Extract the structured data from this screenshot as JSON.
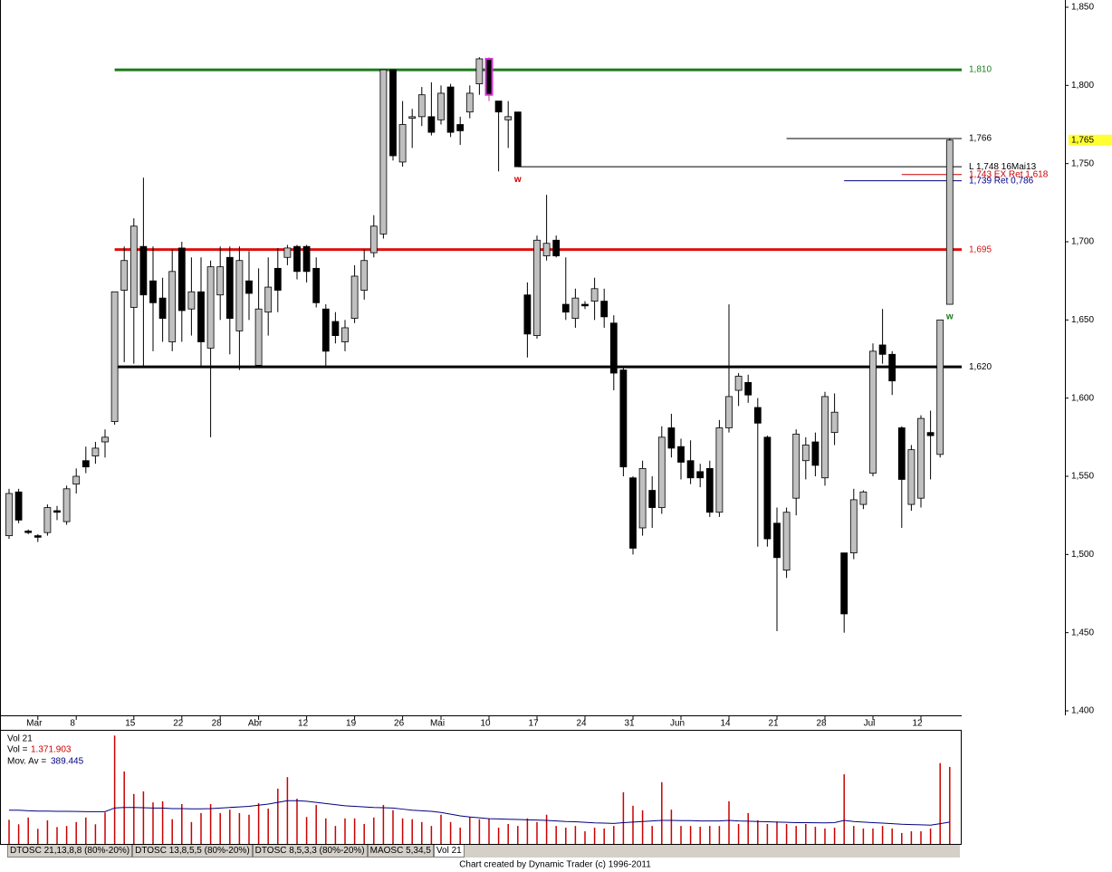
{
  "chart_data": [
    {
      "type": "candlestick",
      "categories": [
        null,
        null,
        null,
        "Mar",
        null,
        null,
        null,
        "8",
        null,
        null,
        null,
        null,
        null,
        "15",
        null,
        null,
        null,
        null,
        "22",
        null,
        null,
        null,
        "28",
        null,
        null,
        null,
        "Abr",
        null,
        null,
        null,
        null,
        "12",
        null,
        null,
        null,
        null,
        "19",
        null,
        null,
        null,
        null,
        "26",
        null,
        null,
        null,
        "Mai",
        null,
        null,
        null,
        null,
        "10",
        null,
        null,
        null,
        null,
        "17",
        null,
        null,
        null,
        null,
        "24",
        null,
        null,
        null,
        null,
        "31",
        null,
        null,
        null,
        null,
        "Jun",
        null,
        null,
        null,
        null,
        "14",
        null,
        null,
        null,
        null,
        "21",
        null,
        null,
        null,
        null,
        "28",
        null,
        null,
        null,
        null,
        "Jul",
        null,
        null,
        null,
        null,
        "12",
        null,
        null,
        null
      ],
      "open": [
        1512,
        1540,
        1515,
        1512,
        1514,
        1528,
        1521,
        1545,
        1560,
        1563,
        1572,
        1585,
        1669,
        1658,
        1697,
        1675,
        1664,
        1636,
        1696,
        1657,
        1668,
        1632,
        1666,
        1690,
        1643,
        1675,
        1621,
        1655,
        1683,
        1690,
        1697,
        1697,
        1683,
        1657,
        1649,
        1636,
        1651,
        1669,
        1693,
        1705,
        1810,
        1751,
        1779,
        1780,
        1780,
        1778,
        1799,
        1775,
        1783,
        1801,
        1817,
        1790,
        1778,
        1783,
        1666,
        1640,
        1691,
        1701,
        1660,
        1651,
        1660,
        1662,
        1662,
        1648,
        1618,
        1549,
        1517,
        1541,
        1530,
        1581,
        1569,
        1560,
        1553,
        1555,
        1527,
        1581,
        1605,
        1610,
        1594,
        1575,
        1520,
        1490,
        1536,
        1560,
        1572,
        1549,
        1578,
        1501,
        1501,
        1532,
        1552,
        1634,
        1628,
        1581,
        1532,
        1536,
        1578,
        1564,
        1660
      ],
      "high": [
        1542,
        1542,
        1516,
        1513,
        1532,
        1531,
        1544,
        1555,
        1569,
        1572,
        1580,
        1668,
        1697,
        1715,
        1741,
        1697,
        1677,
        1695,
        1700,
        1690,
        1690,
        1688,
        1697,
        1697,
        1697,
        1694,
        1683,
        1690,
        1696,
        1698,
        1698,
        1698,
        1690,
        1660,
        1655,
        1650,
        1685,
        1695,
        1717,
        1810,
        1810,
        1790,
        1785,
        1799,
        1802,
        1800,
        1801,
        1780,
        1800,
        1818,
        1818,
        1790,
        1790,
        1783,
        1674,
        1704,
        1730,
        1704,
        1690,
        1670,
        1662,
        1677,
        1670,
        1653,
        1620,
        1550,
        1560,
        1550,
        1582,
        1590,
        1574,
        1573,
        1558,
        1560,
        1586,
        1660,
        1616,
        1615,
        1600,
        1576,
        1530,
        1530,
        1580,
        1575,
        1578,
        1604,
        1603,
        1501,
        1542,
        1541,
        1635,
        1657,
        1630,
        1582,
        1570,
        1589,
        1592,
        1650,
        1766
      ],
      "low": [
        1510,
        1520,
        1513,
        1508,
        1512,
        1522,
        1519,
        1539,
        1552,
        1558,
        1562,
        1583,
        1623,
        1622,
        1620,
        1630,
        1636,
        1630,
        1636,
        1640,
        1620,
        1575,
        1650,
        1628,
        1618,
        1650,
        1620,
        1640,
        1655,
        1685,
        1676,
        1674,
        1658,
        1620,
        1635,
        1630,
        1648,
        1663,
        1690,
        1702,
        1752,
        1748,
        1760,
        1774,
        1768,
        1775,
        1767,
        1762,
        1779,
        1794,
        1790,
        1745,
        1760,
        1748,
        1626,
        1638,
        1688,
        1690,
        1650,
        1645,
        1657,
        1650,
        1645,
        1605,
        1550,
        1500,
        1512,
        1517,
        1526,
        1562,
        1548,
        1545,
        1543,
        1524,
        1524,
        1578,
        1595,
        1597,
        1505,
        1505,
        1451,
        1485,
        1525,
        1548,
        1550,
        1544,
        1570,
        1450,
        1497,
        1529,
        1550,
        1622,
        1602,
        1517,
        1528,
        1530,
        1548,
        1562,
        1660
      ],
      "close": [
        1539,
        1522,
        1514,
        1511,
        1530,
        1527,
        1542,
        1550,
        1556,
        1568,
        1575,
        1668,
        1688,
        1710,
        1666,
        1661,
        1651,
        1681,
        1656,
        1668,
        1636,
        1684,
        1684,
        1651,
        1688,
        1667,
        1657,
        1671,
        1669,
        1696,
        1681,
        1681,
        1661,
        1630,
        1640,
        1645,
        1678,
        1688,
        1710,
        1810,
        1755,
        1775,
        1780,
        1794,
        1770,
        1795,
        1770,
        1771,
        1795,
        1817,
        1794,
        1783,
        1780,
        1748,
        1641,
        1701,
        1699,
        1691,
        1655,
        1664,
        1659,
        1670,
        1652,
        1616,
        1556,
        1504,
        1555,
        1530,
        1575,
        1568,
        1559,
        1549,
        1549,
        1527,
        1581,
        1601,
        1614,
        1602,
        1584,
        1510,
        1498,
        1527,
        1577,
        1570,
        1557,
        1601,
        1591,
        1462,
        1535,
        1540,
        1630,
        1628,
        1611,
        1548,
        1567,
        1587,
        1576,
        1650,
        1765
      ],
      "up_color": "#c0c0c0",
      "down_color": "#000000",
      "highlight": {
        "index": 50,
        "color": "#cc33cc"
      },
      "ylim": [
        1400,
        1850
      ],
      "yticks": [
        {
          "value": 1400,
          "label": "1,400"
        },
        {
          "value": 1450,
          "label": "1,450"
        },
        {
          "value": 1500,
          "label": "1,500"
        },
        {
          "value": 1550,
          "label": "1,550"
        },
        {
          "value": 1600,
          "label": "1,600"
        },
        {
          "value": 1650,
          "label": "1,650"
        },
        {
          "value": 1700,
          "label": "1,700"
        },
        {
          "value": 1750,
          "label": "1,750"
        },
        {
          "value": 1800,
          "label": "1,800"
        },
        {
          "value": 1850,
          "label": "1,850"
        }
      ],
      "lines": [
        {
          "value": 1810,
          "label": "1,810",
          "color": "#1a7a1a",
          "from": 11,
          "style": "thick"
        },
        {
          "value": 1695,
          "label": "1,695",
          "color": "#dd1111",
          "from": 11,
          "style": "thick"
        },
        {
          "value": 1620,
          "label": "1,620",
          "color": "#000000",
          "from": 11,
          "style": "thick"
        },
        {
          "value": 1766,
          "label": "1,766",
          "color": "#000000",
          "from": 81,
          "style": "thin"
        },
        {
          "value": 1748,
          "label": "L 1,748 16Mai13",
          "color": "#000000",
          "from": 53,
          "style": "thin"
        },
        {
          "value": 1743,
          "label": "1,743 EX Ret 1,618",
          "color": "#cc0000",
          "from": 93,
          "style": "thin"
        },
        {
          "value": 1739,
          "label": "1,739 Ret 0,786",
          "color": "#000080",
          "from": 87,
          "style": "thin"
        }
      ],
      "last_price": {
        "value": 1765,
        "label": "1,765",
        "color": "#ffff33"
      },
      "markers": [
        {
          "label": "w",
          "index": 53,
          "color": "#cc0000"
        },
        {
          "label": "w",
          "index": 98,
          "color": "#1a7a1a"
        }
      ]
    },
    {
      "type": "bar",
      "title": "Vol 21",
      "ylim": [
        0,
        2000000
      ],
      "series": [
        {
          "name": "Vol =",
          "color": "#cc0000",
          "value_label": "1.371.903",
          "values": [
            430000,
            350000,
            470000,
            270000,
            420000,
            300000,
            320000,
            390000,
            470000,
            350000,
            560000,
            1930000,
            1290000,
            890000,
            935000,
            740000,
            760000,
            440000,
            710000,
            390000,
            550000,
            710000,
            550000,
            610000,
            550000,
            520000,
            725000,
            630000,
            985000,
            1190000,
            805000,
            480000,
            695000,
            455000,
            320000,
            455000,
            455000,
            355000,
            470000,
            695000,
            600000,
            455000,
            440000,
            390000,
            320000,
            520000,
            390000,
            290000,
            480000,
            440000,
            455000,
            290000,
            355000,
            320000,
            455000,
            390000,
            520000,
            320000,
            290000,
            320000,
            225000,
            290000,
            275000,
            320000,
            920000,
            680000,
            600000,
            320000,
            1100000,
            610000,
            320000,
            320000,
            305000,
            320000,
            320000,
            760000,
            355000,
            550000,
            420000,
            355000,
            400000,
            355000,
            320000,
            355000,
            305000,
            275000,
            290000,
            1240000,
            320000,
            275000,
            275000,
            320000,
            275000,
            195000,
            225000,
            225000,
            275000,
            1440000,
            1371903
          ]
        },
        {
          "name": "Mov. Av =",
          "type": "line",
          "color": "#000080",
          "value_label": "389.445",
          "values": [
            600000,
            600000,
            590000,
            585000,
            585000,
            580000,
            580000,
            578000,
            575000,
            575000,
            575000,
            640000,
            650000,
            650000,
            645000,
            640000,
            640000,
            630000,
            630000,
            625000,
            625000,
            630000,
            640000,
            650000,
            660000,
            670000,
            690000,
            710000,
            740000,
            770000,
            770000,
            760000,
            740000,
            720000,
            700000,
            680000,
            670000,
            660000,
            650000,
            645000,
            640000,
            620000,
            600000,
            590000,
            580000,
            560000,
            530000,
            500000,
            480000,
            465000,
            450000,
            445000,
            440000,
            435000,
            430000,
            425000,
            420000,
            410000,
            400000,
            395000,
            385000,
            375000,
            370000,
            365000,
            380000,
            390000,
            400000,
            410000,
            420000,
            420000,
            415000,
            415000,
            410000,
            410000,
            410000,
            420000,
            410000,
            405000,
            400000,
            395000,
            390000,
            385000,
            380000,
            380000,
            378000,
            375000,
            380000,
            420000,
            400000,
            390000,
            380000,
            370000,
            360000,
            350000,
            345000,
            340000,
            335000,
            360000,
            389445
          ]
        }
      ]
    }
  ],
  "tabs": [
    "DTOSC 21,13,8,8 (80%-20%)",
    "DTOSC 13,8,5,5 (80%-20%)",
    "DTOSC 8,5,3,3 (80%-20%)",
    "MAOSC 5,34,5",
    "Vol 21"
  ],
  "footer": "Chart created by Dynamic Trader  (c) 1996-2011"
}
